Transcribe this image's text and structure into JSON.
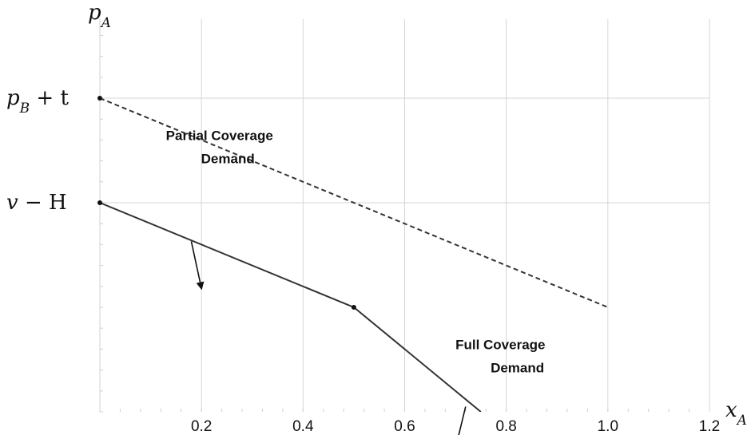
{
  "chart_data": {
    "type": "line",
    "title": "",
    "xlabel": {
      "main": "x",
      "sub": "A"
    },
    "ylabel": {
      "main": "p",
      "sub": "A"
    },
    "xlim": [
      0,
      1.2
    ],
    "ylim": [
      0,
      3
    ],
    "grid": true,
    "x_ticks": [
      {
        "value": 0.2,
        "label": "0.2"
      },
      {
        "value": 0.4,
        "label": "0.4"
      },
      {
        "value": 0.6,
        "label": "0.6"
      },
      {
        "value": 0.8,
        "label": "0.8"
      },
      {
        "value": 1.0,
        "label": "1.0"
      },
      {
        "value": 1.2,
        "label": "1.2"
      }
    ],
    "y_ticks": [
      {
        "value": 2.0,
        "main": "p",
        "sub": "B",
        "tail": " + t"
      },
      {
        "value": 1.0,
        "main": "v",
        "sub": "",
        "tail": " − H"
      }
    ],
    "y_gridlines": [
      1.0,
      2.0,
      3.0
    ],
    "series": [
      {
        "style": "dashed",
        "color": "#333333",
        "points": [
          [
            0,
            2.0
          ],
          [
            1.0,
            0
          ]
        ]
      },
      {
        "style": "solid",
        "color": "#333333",
        "points": [
          [
            0,
            1.0
          ],
          [
            0.5,
            0.0
          ],
          [
            0.75,
            -1.0
          ]
        ]
      }
    ],
    "markers": [
      [
        0,
        2.0
      ],
      [
        0,
        1.0
      ],
      [
        0.5,
        0.0
      ]
    ],
    "annotations": [
      {
        "lines": [
          "Partial Coverage",
          "Demand"
        ],
        "text_pos": [
          0.13,
          1.6
        ],
        "arrow_from": [
          0.18,
          0.63
        ],
        "arrow_to": [
          0.2,
          0.18
        ]
      },
      {
        "lines": [
          "Full Coverage",
          "Demand"
        ],
        "text_pos": [
          0.7,
          -0.4
        ],
        "arrow_from": [
          0.72,
          -0.95
        ],
        "arrow_to": [
          0.7,
          -1.35
        ]
      }
    ]
  }
}
